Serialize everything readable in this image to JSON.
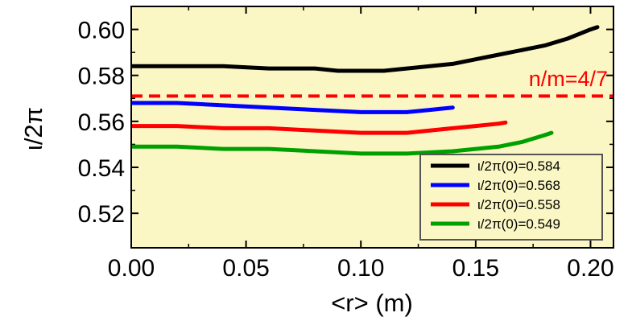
{
  "chart_data": {
    "type": "line",
    "title": "",
    "xlabel": "<r> (m)",
    "ylabel": "ι/2π",
    "xlim": [
      0.0,
      0.21
    ],
    "ylim": [
      0.505,
      0.61
    ],
    "x_ticks": [
      0.0,
      0.05,
      0.1,
      0.15,
      0.2
    ],
    "x_tick_labels": [
      "0.00",
      "0.05",
      "0.10",
      "0.15",
      "0.20"
    ],
    "y_ticks": [
      0.52,
      0.54,
      0.56,
      0.58,
      0.6
    ],
    "y_tick_labels": [
      "0.52",
      "0.54",
      "0.56",
      "0.58",
      "0.60"
    ],
    "grid": false,
    "legend_placement": "bottom-right",
    "background_color": "#fbf7c4",
    "series": [
      {
        "name": "ι/2π(0)=0.584",
        "color": "#000000",
        "x": [
          0.0,
          0.02,
          0.04,
          0.06,
          0.08,
          0.09,
          0.1,
          0.11,
          0.12,
          0.13,
          0.14,
          0.15,
          0.16,
          0.17,
          0.18,
          0.19,
          0.195,
          0.2,
          0.203
        ],
        "y": [
          0.584,
          0.584,
          0.584,
          0.583,
          0.583,
          0.582,
          0.582,
          0.582,
          0.583,
          0.584,
          0.585,
          0.587,
          0.589,
          0.591,
          0.593,
          0.596,
          0.598,
          0.6,
          0.601
        ]
      },
      {
        "name": "ι/2π(0)=0.568",
        "color": "#0000ff",
        "x": [
          0.0,
          0.02,
          0.04,
          0.06,
          0.08,
          0.1,
          0.11,
          0.12,
          0.13,
          0.135,
          0.14
        ],
        "y": [
          0.568,
          0.568,
          0.567,
          0.566,
          0.565,
          0.564,
          0.564,
          0.564,
          0.565,
          0.5655,
          0.566
        ]
      },
      {
        "name": "ι/2π(0)=0.558",
        "color": "#ff0000",
        "x": [
          0.0,
          0.02,
          0.04,
          0.06,
          0.08,
          0.1,
          0.12,
          0.13,
          0.14,
          0.15,
          0.16,
          0.163
        ],
        "y": [
          0.558,
          0.558,
          0.557,
          0.557,
          0.556,
          0.555,
          0.555,
          0.556,
          0.557,
          0.558,
          0.559,
          0.5595
        ]
      },
      {
        "name": "ι/2π(0)=0.549",
        "color": "#00a000",
        "x": [
          0.0,
          0.02,
          0.04,
          0.06,
          0.08,
          0.1,
          0.12,
          0.14,
          0.16,
          0.17,
          0.18,
          0.183
        ],
        "y": [
          0.549,
          0.549,
          0.548,
          0.548,
          0.547,
          0.546,
          0.546,
          0.547,
          0.549,
          0.551,
          0.554,
          0.555
        ]
      }
    ],
    "reference_lines": [
      {
        "label": "n/m=4/7",
        "y": 0.571,
        "color": "#ff0000",
        "style": "dashed"
      }
    ]
  }
}
